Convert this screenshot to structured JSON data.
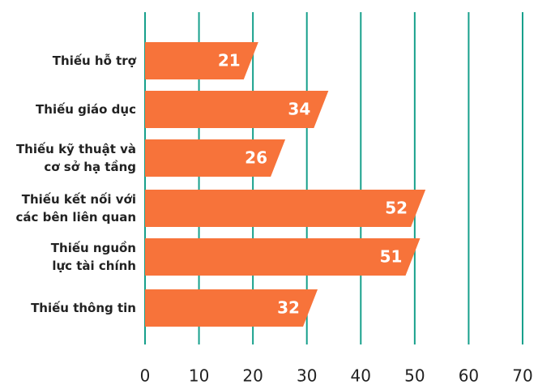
{
  "chart_data": {
    "type": "bar",
    "orientation": "horizontal",
    "categories": [
      [
        "Thiếu hỗ trợ"
      ],
      [
        "Thiếu giáo dục"
      ],
      [
        "Thiếu kỹ thuật và",
        "cơ sở hạ tầng"
      ],
      [
        "Thiếu kết nối với",
        "các bên liên quan"
      ],
      [
        "Thiếu nguồn",
        "lực tài chính"
      ],
      [
        "Thiếu thông tin"
      ]
    ],
    "values": [
      21,
      34,
      26,
      52,
      51,
      32
    ],
    "color": "#f7733a",
    "grid_color": "#17a08c",
    "xlim": [
      0,
      70
    ],
    "xticks": [
      0,
      10,
      20,
      30,
      40,
      50,
      60,
      70
    ],
    "grid": true
  }
}
